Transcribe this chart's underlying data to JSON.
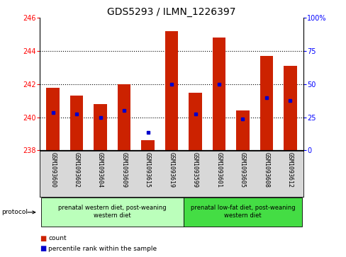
{
  "title": "GDS5293 / ILMN_1226397",
  "samples": [
    "GSM1093600",
    "GSM1093602",
    "GSM1093604",
    "GSM1093609",
    "GSM1093615",
    "GSM1093619",
    "GSM1093599",
    "GSM1093601",
    "GSM1093605",
    "GSM1093608",
    "GSM1093612"
  ],
  "bar_values": [
    241.8,
    241.3,
    240.8,
    242.0,
    238.6,
    245.2,
    241.5,
    244.8,
    240.4,
    243.7,
    243.1
  ],
  "percentile_values": [
    240.3,
    240.2,
    240.0,
    240.4,
    239.1,
    242.0,
    240.2,
    242.0,
    239.9,
    241.2,
    241.0
  ],
  "bar_base": 238.0,
  "ylim_left": [
    238,
    246
  ],
  "ylim_right": [
    0,
    100
  ],
  "yticks_left": [
    238,
    240,
    242,
    244,
    246
  ],
  "yticks_right": [
    0,
    25,
    50,
    75,
    100
  ],
  "bar_color": "#cc2200",
  "percentile_color": "#0000cc",
  "group1_label": "prenatal western diet, post-weaning\nwestern diet",
  "group2_label": "prenatal low-fat diet, post-weaning\nwestern diet",
  "group1_color": "#bbffbb",
  "group2_color": "#44dd44",
  "group1_indices": [
    0,
    1,
    2,
    3,
    4,
    5
  ],
  "group2_indices": [
    6,
    7,
    8,
    9,
    10
  ],
  "protocol_label": "protocol",
  "legend_count_label": "count",
  "legend_percentile_label": "percentile rank within the sample",
  "background_color": "#ffffff",
  "bar_width": 0.55,
  "title_fontsize": 10,
  "tick_fontsize": 7,
  "label_fontsize": 7,
  "gridline_ticks": [
    240,
    242,
    244
  ],
  "label_area_color": "#d8d8d8"
}
